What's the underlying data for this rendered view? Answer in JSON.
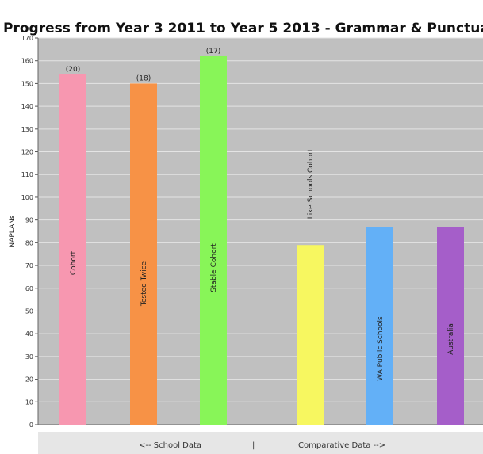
{
  "chart_data": {
    "type": "bar",
    "title": "Progress from Year 3 2011 to Year 5 2013 - Grammar & Punctuation",
    "ylabel": "NAPLANs",
    "ylim": [
      0,
      170
    ],
    "ytick_step": 10,
    "grid": true,
    "categories": [
      "Cohort",
      "Tested Twice",
      "Stable Cohort",
      "Like Schools Cohort",
      "WA Public Schools",
      "Australia"
    ],
    "values": [
      154,
      150,
      162,
      79,
      87,
      87
    ],
    "counts": [
      "(20)",
      "(18)",
      "(17)",
      "",
      "",
      ""
    ],
    "colors": [
      "#f797b0",
      "#f79246",
      "#88f558",
      "#f7f760",
      "#63b0f7",
      "#a55ec9"
    ],
    "plot_background": "#c0c0c0",
    "footer": {
      "left": "<-- School Data",
      "separator": "|",
      "right": "Comparative Data -->"
    }
  }
}
